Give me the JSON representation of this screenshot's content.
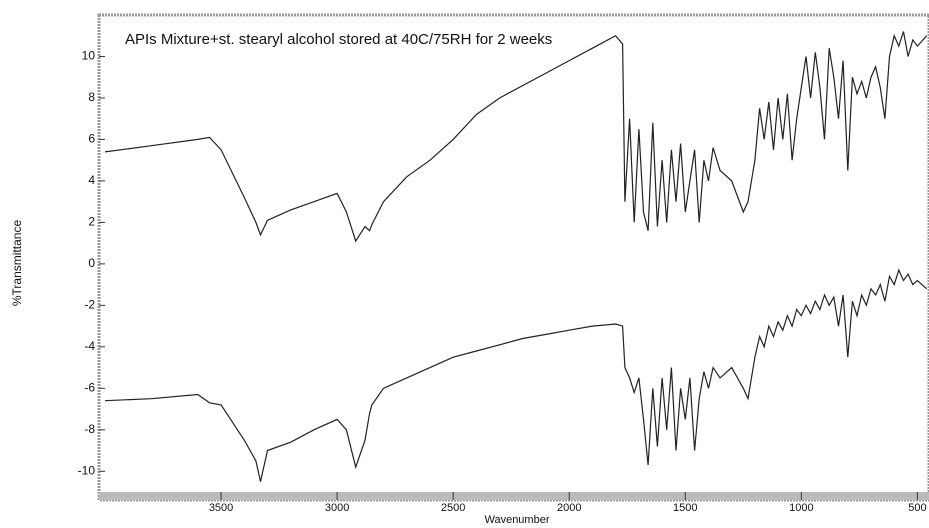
{
  "chart_data": {
    "type": "line",
    "annotation": "APIs Mixture+st. stearyl alcohol stored at 40C/75RH for 2 weeks",
    "x_label": "Wavenumber",
    "y_label": "%Transmittance",
    "x": [
      4000,
      3800,
      3600,
      3550,
      3500,
      3400,
      3350,
      3330,
      3300,
      3200,
      3100,
      3000,
      2960,
      2920,
      2880,
      2860,
      2850,
      2800,
      2700,
      2600,
      2500,
      2400,
      2300,
      2200,
      2100,
      2000,
      1900,
      1800,
      1770,
      1760,
      1740,
      1720,
      1700,
      1680,
      1660,
      1640,
      1620,
      1600,
      1580,
      1560,
      1540,
      1520,
      1500,
      1480,
      1460,
      1440,
      1420,
      1400,
      1380,
      1350,
      1300,
      1250,
      1230,
      1200,
      1180,
      1160,
      1140,
      1120,
      1100,
      1080,
      1060,
      1040,
      1020,
      1000,
      980,
      960,
      940,
      920,
      900,
      880,
      860,
      840,
      820,
      800,
      780,
      760,
      740,
      720,
      700,
      680,
      660,
      640,
      620,
      600,
      580,
      560,
      540,
      520,
      500,
      460
    ],
    "series": [
      {
        "color": "#222222",
        "values": [
          5.4,
          5.7,
          6.0,
          6.1,
          5.5,
          3.2,
          2.0,
          1.4,
          2.1,
          2.6,
          3.0,
          3.4,
          2.5,
          1.1,
          1.8,
          1.6,
          1.9,
          3.0,
          4.2,
          5.0,
          6.0,
          7.2,
          8.0,
          8.6,
          9.2,
          9.8,
          10.4,
          11.0,
          10.6,
          3.0,
          7.0,
          2.0,
          6.5,
          2.5,
          1.6,
          6.8,
          1.8,
          5.0,
          2.0,
          5.5,
          3.0,
          5.8,
          2.5,
          4.0,
          5.5,
          2.0,
          5.0,
          4.0,
          5.6,
          4.5,
          4.0,
          2.5,
          3.0,
          5.0,
          7.5,
          6.0,
          7.8,
          5.5,
          8.0,
          6.0,
          8.2,
          5.0,
          7.0,
          8.5,
          10.0,
          8.0,
          10.2,
          8.5,
          6.0,
          10.4,
          9.0,
          7.0,
          9.8,
          4.5,
          9.0,
          8.2,
          8.8,
          8.0,
          9.0,
          9.5,
          8.5,
          7.0,
          10.0,
          11.0,
          10.5,
          11.2,
          10.0,
          10.8,
          10.5,
          11.0
        ]
      },
      {
        "color": "#222222",
        "values": [
          -6.6,
          -6.5,
          -6.3,
          -6.7,
          -6.8,
          -8.5,
          -9.5,
          -10.5,
          -9.0,
          -8.6,
          -8.0,
          -7.5,
          -8.0,
          -9.8,
          -8.5,
          -7.2,
          -6.8,
          -6.0,
          -5.5,
          -5.0,
          -4.5,
          -4.2,
          -3.9,
          -3.6,
          -3.4,
          -3.2,
          -3.0,
          -2.9,
          -3.0,
          -5.0,
          -5.5,
          -6.2,
          -5.5,
          -7.5,
          -9.7,
          -6.0,
          -8.8,
          -5.5,
          -8.0,
          -5.0,
          -9.0,
          -6.0,
          -7.5,
          -5.5,
          -9.0,
          -6.5,
          -5.2,
          -6.0,
          -5.0,
          -5.5,
          -5.0,
          -6.0,
          -6.5,
          -4.5,
          -3.5,
          -4.0,
          -3.0,
          -3.5,
          -2.8,
          -3.2,
          -2.5,
          -3.0,
          -2.2,
          -2.5,
          -2.0,
          -2.4,
          -1.8,
          -2.2,
          -1.5,
          -2.0,
          -1.6,
          -3.0,
          -1.5,
          -4.5,
          -1.8,
          -2.5,
          -1.5,
          -2.0,
          -1.2,
          -1.5,
          -1.0,
          -1.8,
          -0.6,
          -1.0,
          -0.3,
          -0.8,
          -0.5,
          -1.0,
          -0.8,
          -1.2
        ]
      }
    ],
    "xlim": [
      4000,
      450
    ],
    "xticks": [
      3500,
      3000,
      2500,
      2000,
      1500,
      1000,
      500
    ],
    "ylim": [
      -11,
      12
    ],
    "yticks": [
      -10,
      -8,
      -6,
      -4,
      -2,
      0,
      2,
      4,
      6,
      8,
      10
    ]
  }
}
